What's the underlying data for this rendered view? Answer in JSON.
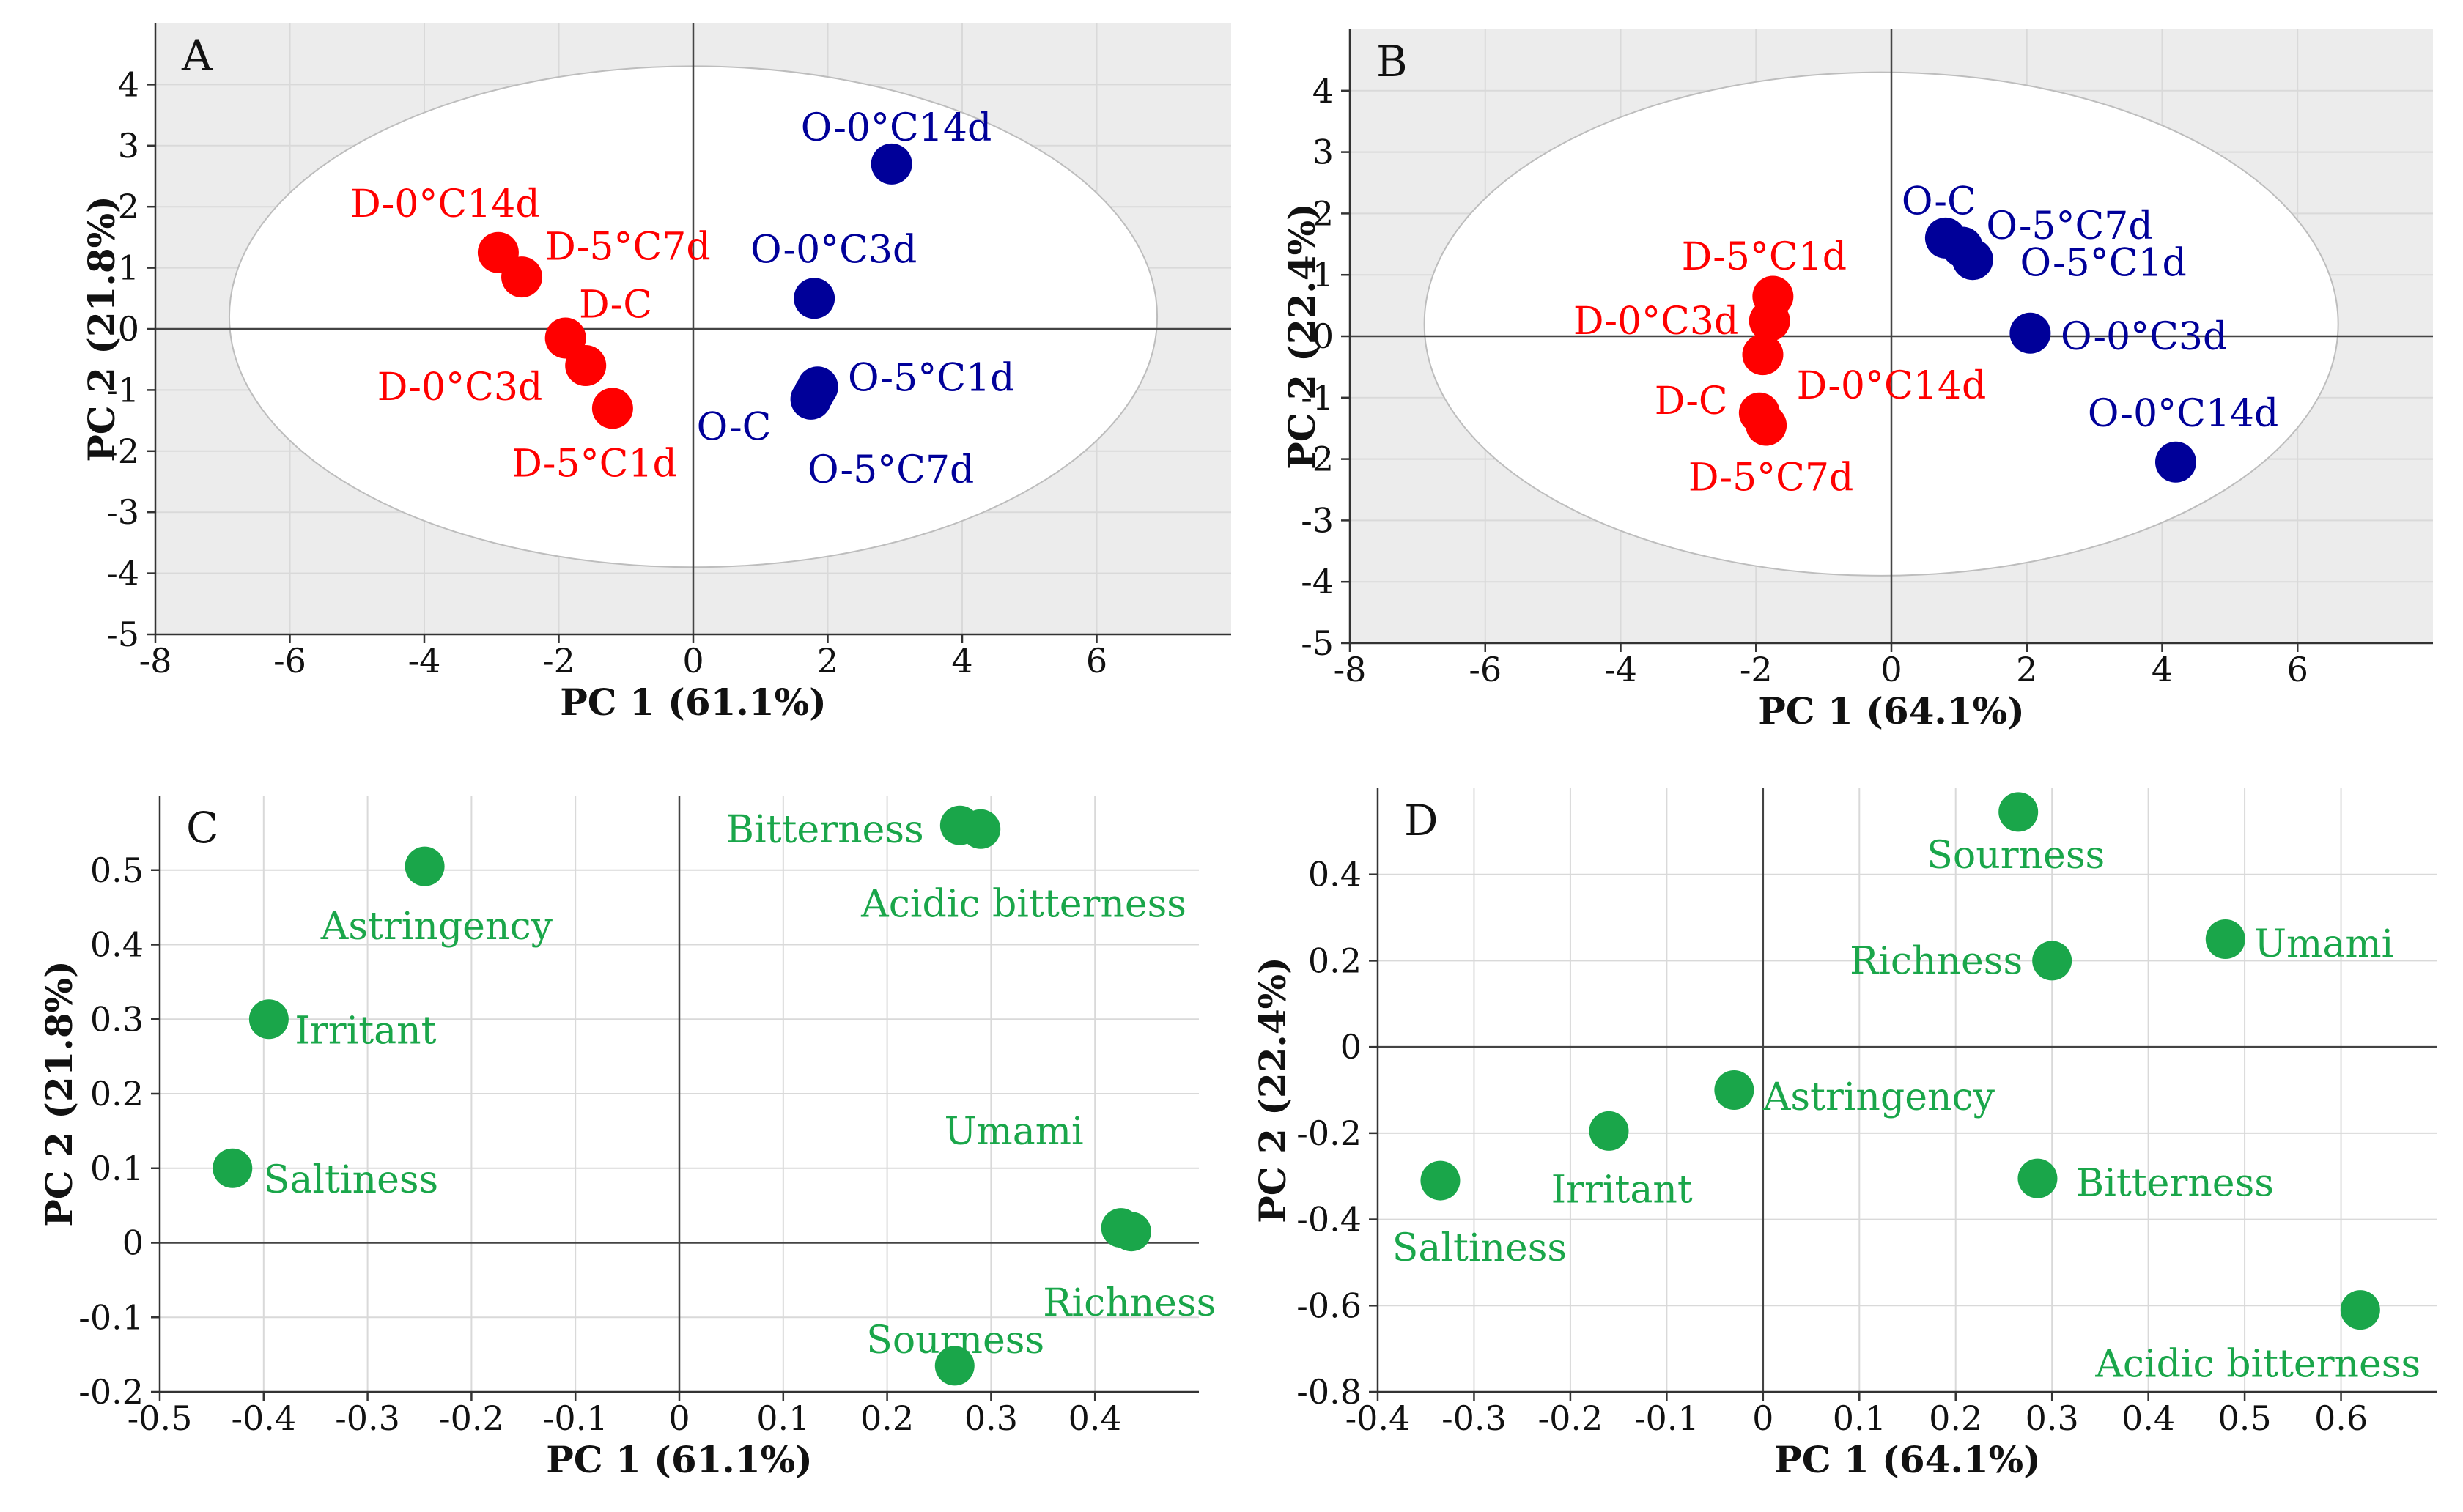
{
  "chart_data": [
    {
      "panel": "A",
      "type": "scatter",
      "background": "#ececec",
      "ellipse": true,
      "xlabel": "PC 1 (61.1%)",
      "ylabel": "PC 2 (21.8%)",
      "xlim": [
        -8,
        8
      ],
      "ylim": [
        -5,
        5
      ],
      "xticks": [
        -8,
        -6,
        -4,
        -2,
        0,
        2,
        4,
        6
      ],
      "yticks": [
        -5,
        -4,
        -3,
        -2,
        -1,
        0,
        1,
        2,
        3,
        4
      ],
      "tick_labels_x": [
        "-8",
        "-6",
        "-4",
        "-2",
        "0",
        "2",
        "4",
        "6"
      ],
      "tick_labels_y": [
        "-5",
        "-4",
        "-3",
        "-2",
        "-1",
        "0",
        "1",
        "2",
        "3",
        "4"
      ],
      "points": [
        {
          "label": "D-0°C14d",
          "x": -2.9,
          "y": 1.25,
          "color": "#ff0000",
          "lx": -5.1,
          "ly": 2.05
        },
        {
          "label": "D-5°C7d",
          "x": -2.55,
          "y": 0.85,
          "color": "#ff0000",
          "lx": -2.2,
          "ly": 1.35
        },
        {
          "label": "D-C",
          "x": -1.9,
          "y": -0.15,
          "color": "#ff0000",
          "lx": -1.7,
          "ly": 0.4
        },
        {
          "label": "D-0°C3d",
          "x": -1.6,
          "y": -0.6,
          "color": "#ff0000",
          "lx": -4.7,
          "ly": -0.95
        },
        {
          "label": "D-5°C1d",
          "x": -1.2,
          "y": -1.3,
          "color": "#ff0000",
          "lx": -2.7,
          "ly": -2.2
        },
        {
          "label": "O-0°C14d",
          "x": 2.95,
          "y": 2.7,
          "color": "#000099",
          "lx": 1.6,
          "ly": 3.3
        },
        {
          "label": "O-0°C3d",
          "x": 1.8,
          "y": 0.5,
          "color": "#000099",
          "lx": 0.85,
          "ly": 1.3
        },
        {
          "label": "O-5°C1d",
          "x": 1.85,
          "y": -0.95,
          "color": "#000099",
          "lx": 2.3,
          "ly": -0.8
        },
        {
          "label": "O-C",
          "x": 1.75,
          "y": -1.15,
          "color": "#000099",
          "lx": 0.05,
          "ly": -1.6
        },
        {
          "label": "O-5°C7d",
          "x": 1.8,
          "y": -1.05,
          "color": "#000099",
          "lx": 1.7,
          "ly": -2.3
        }
      ]
    },
    {
      "panel": "B",
      "type": "scatter",
      "background": "#ececec",
      "ellipse": true,
      "xlabel": "PC 1 (64.1%)",
      "ylabel": "PC 2 (22.4%)",
      "xlim": [
        -8,
        8
      ],
      "ylim": [
        -5,
        5
      ],
      "xticks": [
        -8,
        -6,
        -4,
        -2,
        0,
        2,
        4,
        6
      ],
      "yticks": [
        -5,
        -4,
        -3,
        -2,
        -1,
        0,
        1,
        2,
        3,
        4
      ],
      "tick_labels_x": [
        "-8",
        "-6",
        "-4",
        "-2",
        "0",
        "2",
        "4",
        "6"
      ],
      "tick_labels_y": [
        "-5",
        "-4",
        "-3",
        "-2",
        "-1",
        "0",
        "1",
        "2",
        "3",
        "4"
      ],
      "points": [
        {
          "label": "D-5°C1d",
          "x": -1.75,
          "y": 0.65,
          "color": "#ff0000",
          "lx": -3.1,
          "ly": 1.3
        },
        {
          "label": "D-0°C3d",
          "x": -1.8,
          "y": 0.25,
          "color": "#ff0000",
          "lx": -4.7,
          "ly": 0.25
        },
        {
          "label": "D-0°C14d",
          "x": -1.9,
          "y": -0.3,
          "color": "#ff0000",
          "lx": -1.4,
          "ly": -0.8
        },
        {
          "label": "D-C",
          "x": -1.95,
          "y": -1.25,
          "color": "#ff0000",
          "lx": -3.5,
          "ly": -1.05
        },
        {
          "label": "D-5°C7d",
          "x": -1.85,
          "y": -1.45,
          "color": "#ff0000",
          "lx": -3.0,
          "ly": -2.3
        },
        {
          "label": "O-C",
          "x": 0.8,
          "y": 1.6,
          "color": "#000099",
          "lx": 0.15,
          "ly": 2.2
        },
        {
          "label": "O-5°C7d",
          "x": 1.05,
          "y": 1.45,
          "color": "#000099",
          "lx": 1.4,
          "ly": 1.8
        },
        {
          "label": "O-5°C1d",
          "x": 1.2,
          "y": 1.25,
          "color": "#000099",
          "lx": 1.9,
          "ly": 1.2
        },
        {
          "label": "O-0°C3d",
          "x": 2.05,
          "y": 0.05,
          "color": "#000099",
          "lx": 2.5,
          "ly": 0.0
        },
        {
          "label": "O-0°C14d",
          "x": 4.2,
          "y": -2.05,
          "color": "#000099",
          "lx": 2.9,
          "ly": -1.25
        }
      ]
    },
    {
      "panel": "C",
      "type": "scatter",
      "background": "#ffffff",
      "ellipse": false,
      "xlabel": "PC 1 (61.1%)",
      "ylabel": "PC 2 (21.8%)",
      "xlim": [
        -0.5,
        0.5
      ],
      "ylim": [
        -0.2,
        0.6
      ],
      "xticks": [
        -0.5,
        -0.4,
        -0.3,
        -0.2,
        -0.1,
        0,
        0.1,
        0.2,
        0.3,
        0.4
      ],
      "yticks": [
        -0.2,
        -0.1,
        0,
        0.1,
        0.2,
        0.3,
        0.4,
        0.5
      ],
      "tick_labels_x": [
        "-0.5",
        "-0.4",
        "-0.3",
        "-0.2",
        "-0.1",
        "0",
        "0.1",
        "0.2",
        "0.3",
        "0.4"
      ],
      "tick_labels_y": [
        "-0.2",
        "-0.1",
        "0",
        "0.1",
        "0.2",
        "0.3",
        "0.4",
        "0.5"
      ],
      "points": [
        {
          "label": "Astringency",
          "x": -0.245,
          "y": 0.505,
          "color": "#1aa64a",
          "lx": -0.345,
          "ly": 0.425
        },
        {
          "label": "Irritant",
          "x": -0.395,
          "y": 0.3,
          "color": "#1aa64a",
          "lx": -0.37,
          "ly": 0.285
        },
        {
          "label": "Saltiness",
          "x": -0.43,
          "y": 0.1,
          "color": "#1aa64a",
          "lx": -0.4,
          "ly": 0.085
        },
        {
          "label": "Bitterness",
          "x": 0.27,
          "y": 0.56,
          "color": "#1aa64a",
          "lx": 0.045,
          "ly": 0.555
        },
        {
          "label": "Acidic bitterness",
          "x": 0.29,
          "y": 0.555,
          "color": "#1aa64a",
          "lx": 0.175,
          "ly": 0.455
        },
        {
          "label": "Umami",
          "x": 0.425,
          "y": 0.02,
          "color": "#1aa64a",
          "lx": 0.255,
          "ly": 0.15
        },
        {
          "label": "Richness",
          "x": 0.435,
          "y": 0.015,
          "color": "#1aa64a",
          "lx": 0.35,
          "ly": -0.08
        },
        {
          "label": "Sourness",
          "x": 0.265,
          "y": -0.165,
          "color": "#1aa64a",
          "lx": 0.18,
          "ly": -0.13
        }
      ]
    },
    {
      "panel": "D",
      "type": "scatter",
      "background": "#ffffff",
      "ellipse": false,
      "xlabel": "PC 1 (64.1%)",
      "ylabel": "PC 2 (22.4%)",
      "xlim": [
        -0.4,
        0.7
      ],
      "ylim": [
        -0.8,
        0.6
      ],
      "xticks": [
        -0.4,
        -0.3,
        -0.2,
        -0.1,
        0,
        0.1,
        0.2,
        0.3,
        0.4,
        0.5,
        0.6
      ],
      "yticks": [
        -0.8,
        -0.6,
        -0.4,
        -0.2,
        0,
        0.2,
        0.4
      ],
      "tick_labels_x": [
        "-0.4",
        "-0.3",
        "-0.2",
        "-0.1",
        "0",
        "0.1",
        "0.2",
        "0.3",
        "0.4",
        "0.5",
        "0.6"
      ],
      "tick_labels_y": [
        "-0.8",
        "-0.6",
        "-0.4",
        "-0.2",
        "0",
        "0.2",
        "0.4"
      ],
      "points": [
        {
          "label": "Sourness",
          "x": 0.265,
          "y": 0.545,
          "color": "#1aa64a",
          "lx": 0.17,
          "ly": 0.445
        },
        {
          "label": "Richness",
          "x": 0.3,
          "y": 0.2,
          "color": "#1aa64a",
          "lx": 0.09,
          "ly": 0.2
        },
        {
          "label": "Umami",
          "x": 0.48,
          "y": 0.25,
          "color": "#1aa64a",
          "lx": 0.51,
          "ly": 0.24
        },
        {
          "label": "Astringency",
          "x": -0.03,
          "y": -0.1,
          "color": "#1aa64a",
          "lx": 0.0,
          "ly": -0.115
        },
        {
          "label": "Irritant",
          "x": -0.16,
          "y": -0.195,
          "color": "#1aa64a",
          "lx": -0.22,
          "ly": -0.33
        },
        {
          "label": "Saltiness",
          "x": -0.335,
          "y": -0.31,
          "color": "#1aa64a",
          "lx": -0.385,
          "ly": -0.465
        },
        {
          "label": "Bitterness",
          "x": 0.285,
          "y": -0.305,
          "color": "#1aa64a",
          "lx": 0.325,
          "ly": -0.315
        },
        {
          "label": "Acidic bitterness",
          "x": 0.62,
          "y": -0.61,
          "color": "#1aa64a",
          "lx": 0.345,
          "ly": -0.735
        }
      ]
    }
  ]
}
